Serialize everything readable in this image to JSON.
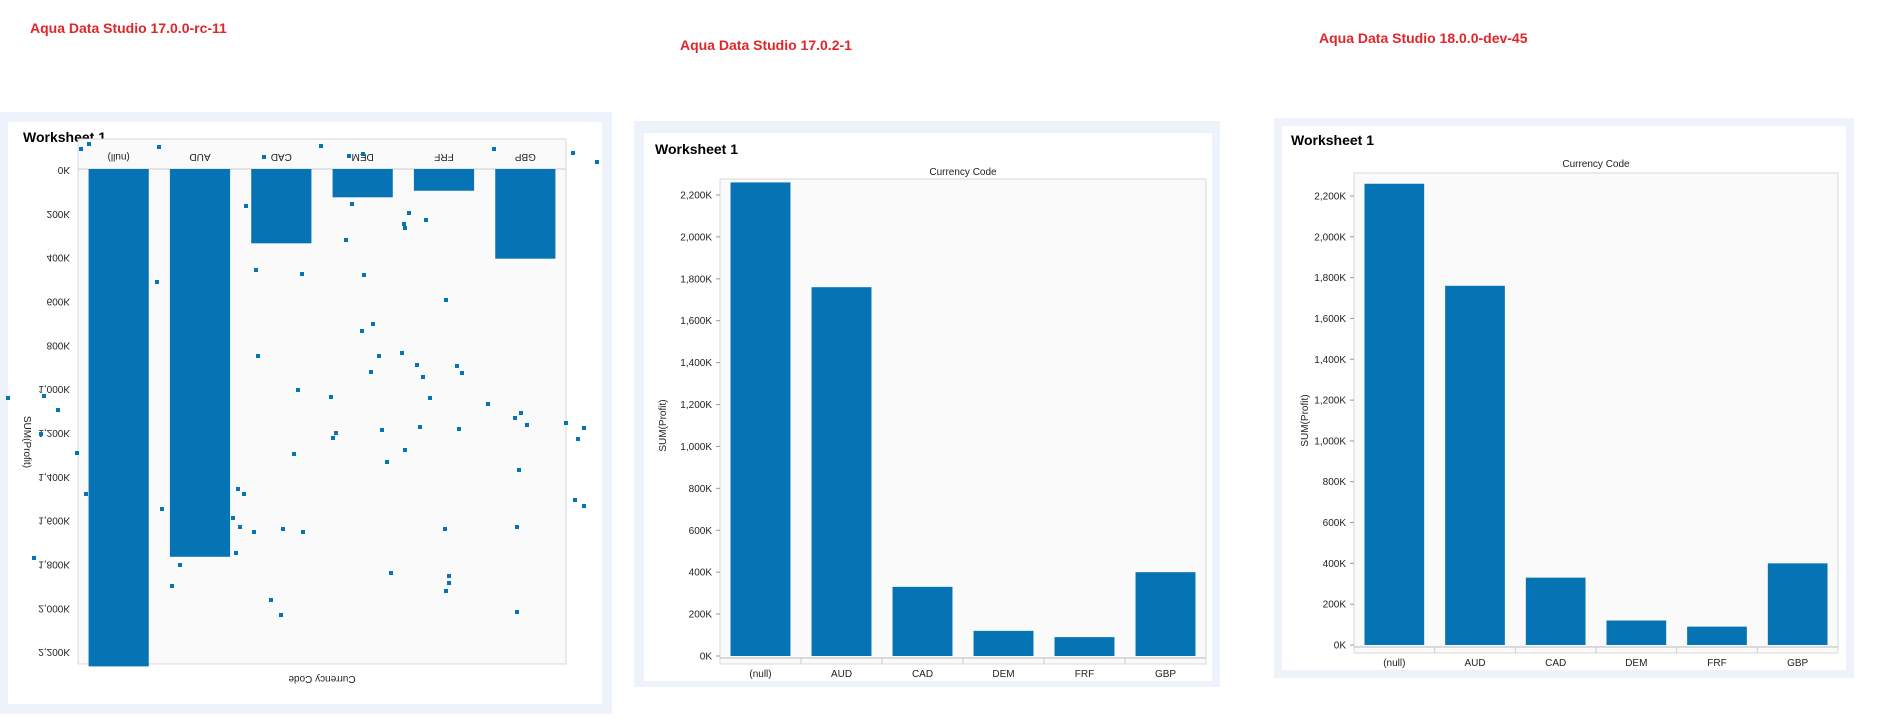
{
  "labels": {
    "left_version": "Aqua Data Studio 17.0.0-rc-11",
    "mid_version": "Aqua Data Studio 17.0.2-1",
    "right_version": "Aqua Data Studio 18.0.0-dev-45"
  },
  "worksheets": {
    "left_title": "Worksheet 1",
    "mid_title": "Worksheet 1",
    "right_title": "Worksheet 1"
  },
  "colors": {
    "bar": "#0573b4",
    "version_label": "#e0262a",
    "panel_bg": "#eef2fa"
  },
  "chart_data": [
    {
      "type": "bar",
      "title": "",
      "xlabel": "Currency Code",
      "ylabel": "SUM(Profit)",
      "orientation": "upside-down (rendered flipped vertically)",
      "categories": [
        "(null)",
        "AUD",
        "CAD",
        "DEM",
        "FRF",
        "GBP"
      ],
      "values": [
        2260,
        1760,
        330,
        120,
        90,
        400
      ],
      "yticks": [
        "0K",
        "200K",
        "400K",
        "600K",
        "800K",
        "1,000K",
        "1,200K",
        "1,400K",
        "1,600K",
        "1,800K",
        "2,000K",
        "2,200K"
      ],
      "ylim": [
        0,
        2200
      ],
      "units": "K",
      "note": "scattered stray dots rendered around the chart"
    },
    {
      "type": "bar",
      "title": "Currency Code",
      "xlabel": "",
      "ylabel": "SUM(Profit)",
      "categories": [
        "(null)",
        "AUD",
        "CAD",
        "DEM",
        "FRF",
        "GBP"
      ],
      "values": [
        2260,
        1760,
        330,
        120,
        90,
        400
      ],
      "yticks": [
        "0K",
        "200K",
        "400K",
        "600K",
        "800K",
        "1,000K",
        "1,200K",
        "1,400K",
        "1,600K",
        "1,800K",
        "2,000K",
        "2,200K"
      ],
      "ylim": [
        0,
        2200
      ],
      "units": "K"
    },
    {
      "type": "bar",
      "title": "Currency Code",
      "xlabel": "",
      "ylabel": "SUM(Profit)",
      "categories": [
        "(null)",
        "AUD",
        "CAD",
        "DEM",
        "FRF",
        "GBP"
      ],
      "values": [
        2260,
        1760,
        330,
        120,
        90,
        400
      ],
      "yticks": [
        "0K",
        "200K",
        "400K",
        "600K",
        "800K",
        "1,000K",
        "1,200K",
        "1,400K",
        "1,600K",
        "1,800K",
        "2,000K",
        "2,200K"
      ],
      "ylim": [
        0,
        2200
      ],
      "units": "K"
    }
  ]
}
